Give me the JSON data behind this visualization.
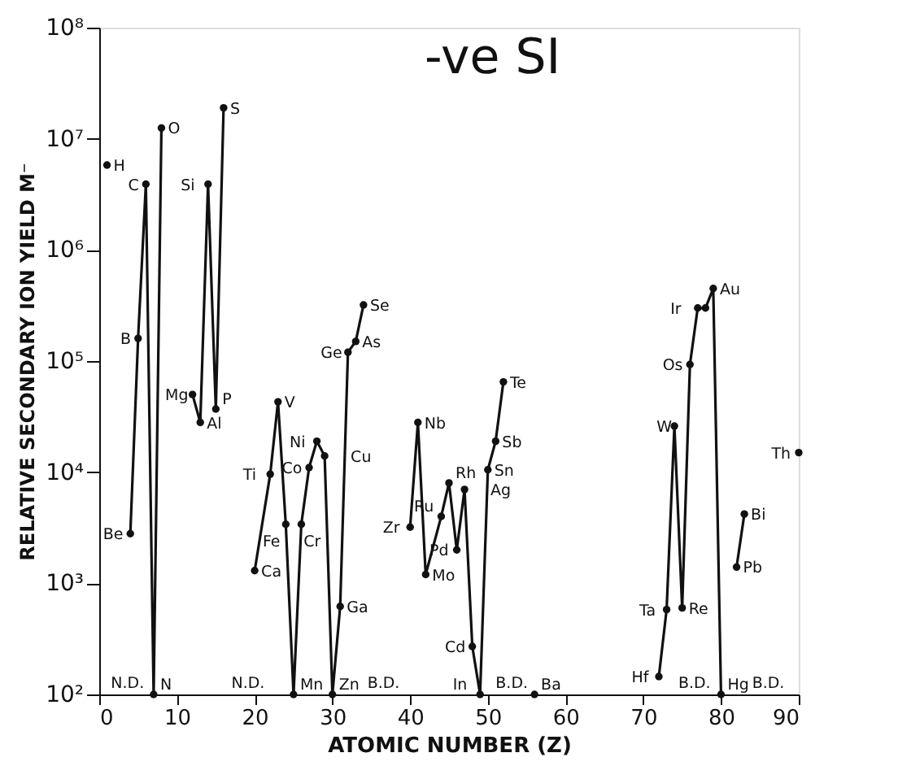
{
  "chart_data": {
    "type": "line",
    "xlabel": "ATOMIC NUMBER (Z)",
    "ylabel": "RELATIVE SECONDARY ION YIELD M⁻",
    "x": [
      1,
      null,
      56,
      null,
      4,
      5,
      6,
      7,
      8,
      null,
      12,
      13,
      14,
      15,
      16,
      null,
      20,
      22,
      23,
      24,
      25,
      26,
      27,
      28,
      29,
      30,
      31,
      32,
      33,
      34,
      null,
      40,
      41,
      42,
      44,
      45,
      46,
      47,
      48,
      49,
      50,
      51,
      52,
      null,
      72,
      73,
      74,
      75,
      76,
      77,
      78,
      79,
      80,
      null,
      82,
      83,
      null,
      90
    ],
    "series": [
      {
        "color": "#111111",
        "values": [
          5800000,
          null,
          100,
          null,
          2800,
          160000,
          3900000,
          100,
          12500000,
          null,
          50000,
          28000,
          3900000,
          37000,
          19000000,
          null,
          1300,
          9600,
          43000,
          3400,
          100,
          3400,
          11000,
          19000,
          14000,
          100,
          620,
          120000,
          150000,
          320000,
          null,
          3200,
          28000,
          1200,
          4000,
          8000,
          2000,
          7000,
          270,
          100,
          10500,
          19000,
          65000,
          null,
          145,
          580,
          26000,
          600,
          93000,
          300000,
          300000,
          450000,
          100,
          null,
          1400,
          4200,
          null,
          15000
        ]
      }
    ],
    "xlim": [
      0,
      90
    ],
    "xticks": [
      0,
      10,
      20,
      30,
      40,
      50,
      60,
      70,
      80,
      90
    ],
    "ylim": [
      100,
      100000000
    ],
    "log": "y",
    "yticks": [
      {
        "value": 100,
        "label": "10²"
      },
      {
        "value": 1000,
        "label": "10³"
      },
      {
        "value": 10000,
        "label": "10⁴"
      },
      {
        "value": 100000,
        "label": "10⁵"
      },
      {
        "value": 1000000,
        "label": "10⁶"
      },
      {
        "value": 10000000,
        "label": "10⁷"
      },
      {
        "value": 100000000,
        "label": "10⁸"
      }
    ],
    "marker": "circle",
    "line_style": "solid",
    "grid": false,
    "annotations": [
      "-ve SI",
      {
        "text": "H",
        "x": 1,
        "y": 5800000
      },
      {
        "text": "Be",
        "x": 4,
        "y": 2800
      },
      {
        "text": "B",
        "x": 5,
        "y": 160000
      },
      {
        "text": "C",
        "x": 6,
        "y": 3900000
      },
      {
        "text": "N",
        "x": 7,
        "y": 100
      },
      {
        "text": "O",
        "x": 8,
        "y": 12500000
      },
      {
        "text": "Mg",
        "x": 12,
        "y": 50000
      },
      {
        "text": "Al",
        "x": 13,
        "y": 28000
      },
      {
        "text": "Si",
        "x": 14,
        "y": 3900000
      },
      {
        "text": "P",
        "x": 15,
        "y": 37000
      },
      {
        "text": "S",
        "x": 16,
        "y": 19000000
      },
      {
        "text": "Ca",
        "x": 20,
        "y": 1300
      },
      {
        "text": "Ti",
        "x": 22,
        "y": 9600
      },
      {
        "text": "V",
        "x": 23,
        "y": 43000
      },
      {
        "text": "Cr",
        "x": 24,
        "y": 3400
      },
      {
        "text": "Mn",
        "x": 25,
        "y": 100
      },
      {
        "text": "Fe",
        "x": 26,
        "y": 3400
      },
      {
        "text": "Co",
        "x": 27,
        "y": 11000
      },
      {
        "text": "Ni",
        "x": 28,
        "y": 19000
      },
      {
        "text": "Cu",
        "x": 29,
        "y": 14000
      },
      {
        "text": "Zn",
        "x": 30,
        "y": 100
      },
      {
        "text": "Ga",
        "x": 31,
        "y": 620
      },
      {
        "text": "Ge",
        "x": 32,
        "y": 120000
      },
      {
        "text": "As",
        "x": 33,
        "y": 150000
      },
      {
        "text": "Se",
        "x": 34,
        "y": 320000
      },
      {
        "text": "Zr",
        "x": 40,
        "y": 3200
      },
      {
        "text": "Nb",
        "x": 41,
        "y": 28000
      },
      {
        "text": "Mo",
        "x": 42,
        "y": 1200
      },
      {
        "text": "Ru",
        "x": 44,
        "y": 4000
      },
      {
        "text": "Rh",
        "x": 45,
        "y": 8000
      },
      {
        "text": "Pd",
        "x": 46,
        "y": 2000
      },
      {
        "text": "Ag",
        "x": 47,
        "y": 7000
      },
      {
        "text": "Cd",
        "x": 48,
        "y": 270
      },
      {
        "text": "In",
        "x": 49,
        "y": 100
      },
      {
        "text": "Sn",
        "x": 50,
        "y": 10500
      },
      {
        "text": "Sb",
        "x": 51,
        "y": 19000
      },
      {
        "text": "Te",
        "x": 52,
        "y": 65000
      },
      {
        "text": "Ba",
        "x": 56,
        "y": 100
      },
      {
        "text": "Hf",
        "x": 72,
        "y": 145
      },
      {
        "text": "Ta",
        "x": 73,
        "y": 580
      },
      {
        "text": "W",
        "x": 74,
        "y": 26000
      },
      {
        "text": "Re",
        "x": 75,
        "y": 600
      },
      {
        "text": "Os",
        "x": 76,
        "y": 93000
      },
      {
        "text": "Ir",
        "x": 77,
        "y": 300000
      },
      {
        "text": "Au",
        "x": 79,
        "y": 450000
      },
      {
        "text": "Hg",
        "x": 80,
        "y": 100
      },
      {
        "text": "Pb",
        "x": 82,
        "y": 1400
      },
      {
        "text": "Bi",
        "x": 83,
        "y": 4200
      },
      {
        "text": "Th",
        "x": 90,
        "y": 15000
      },
      "N.D.",
      "N.D.",
      "B.D.",
      "B.D.",
      "B.D.",
      "B.D."
    ]
  }
}
